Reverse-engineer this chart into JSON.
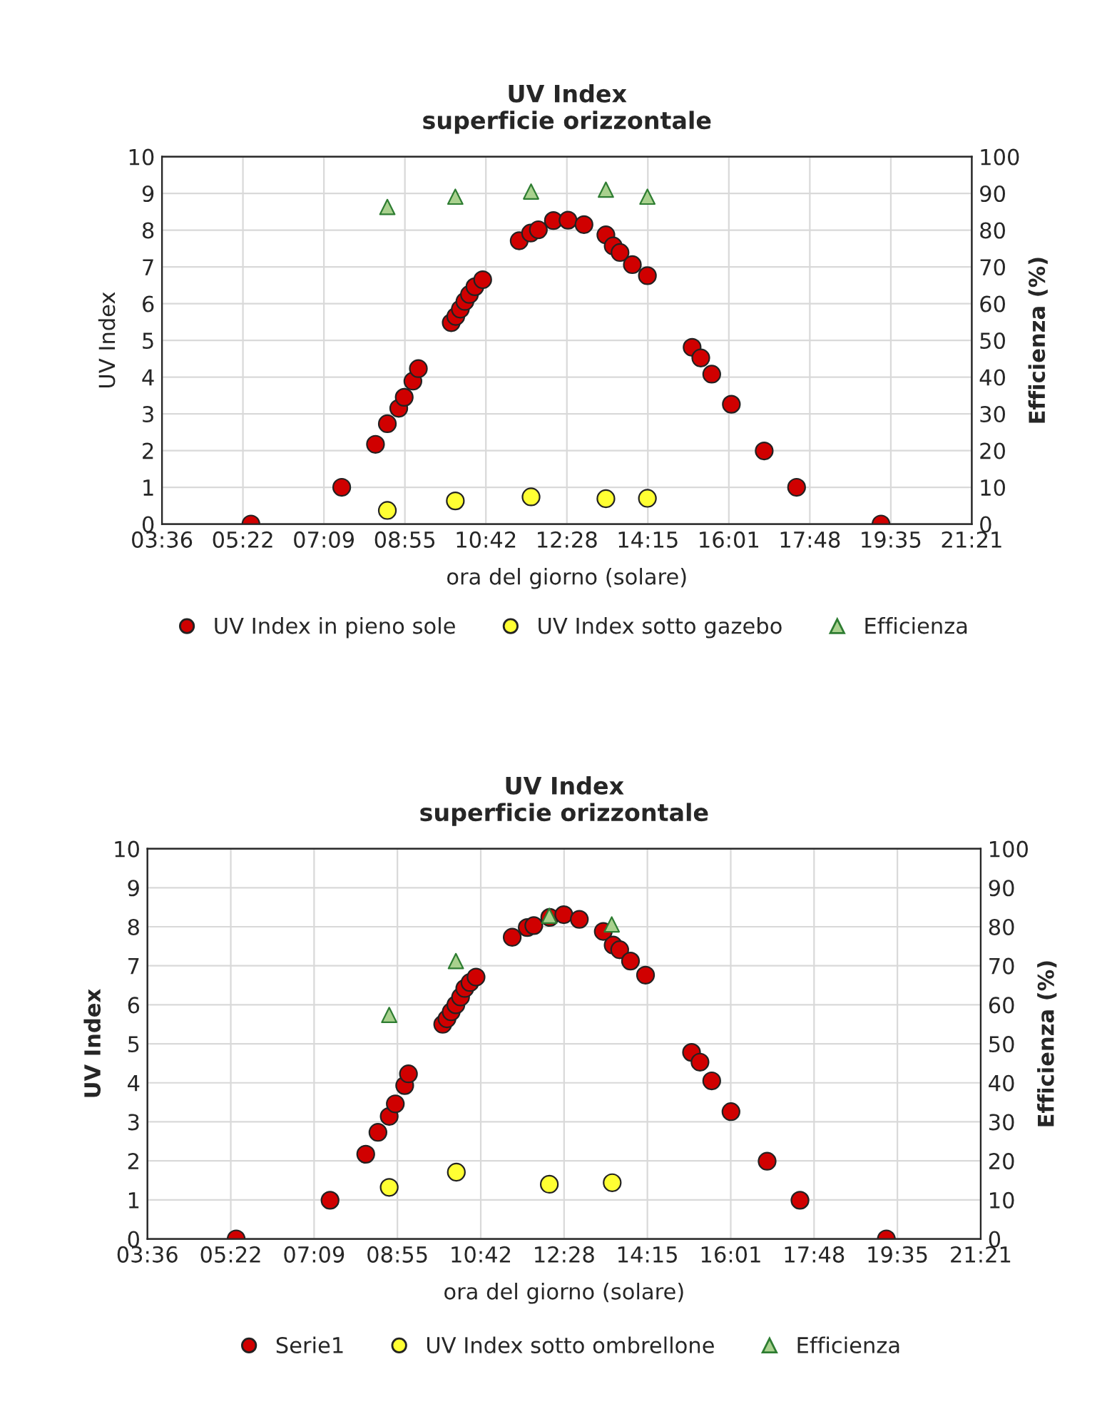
{
  "chart_data": [
    {
      "type": "scatter",
      "title": "UV Index\nsuperficie orizzontale",
      "xlabel": "ora del giorno (solare)",
      "ylabel": "UV Index",
      "y2label": "Efficienza (%)",
      "xlim": [
        3.6,
        21.35
      ],
      "xticks": [
        {
          "value": 3.6,
          "label": "03:36"
        },
        {
          "value": 5.375,
          "label": "05:22"
        },
        {
          "value": 7.15,
          "label": "07:09"
        },
        {
          "value": 8.925,
          "label": "08:55"
        },
        {
          "value": 10.7,
          "label": "10:42"
        },
        {
          "value": 12.475,
          "label": "12:28"
        },
        {
          "value": 14.25,
          "label": "14:15"
        },
        {
          "value": 16.025,
          "label": "16:01"
        },
        {
          "value": 17.8,
          "label": "17:48"
        },
        {
          "value": 19.575,
          "label": "19:35"
        },
        {
          "value": 21.35,
          "label": "21:21"
        }
      ],
      "ylim": [
        0,
        10
      ],
      "yticks": [
        0,
        1,
        2,
        3,
        4,
        5,
        6,
        7,
        8,
        9,
        10
      ],
      "y2lim": [
        0,
        100
      ],
      "y2ticks": [
        0,
        10,
        20,
        30,
        40,
        50,
        60,
        70,
        80,
        90,
        100
      ],
      "grid": true,
      "legend": "bottom",
      "series": [
        {
          "name": "UV Index in pieno sole",
          "color": "#d00000",
          "marker": "circle",
          "x": [
            5.55,
            7.54,
            8.28,
            8.54,
            8.79,
            8.91,
            9.1,
            9.22,
            9.94,
            10.04,
            10.14,
            10.24,
            10.34,
            10.46,
            10.63,
            11.43,
            11.68,
            11.85,
            12.18,
            12.5,
            12.85,
            13.33,
            13.49,
            13.64,
            13.91,
            14.24,
            15.22,
            15.41,
            15.65,
            16.08,
            16.8,
            17.51,
            19.36
          ],
          "values": [
            0,
            1.0,
            2.17,
            2.73,
            3.15,
            3.45,
            3.89,
            4.23,
            5.48,
            5.65,
            5.85,
            6.06,
            6.25,
            6.46,
            6.65,
            7.71,
            7.92,
            8.01,
            8.26,
            8.27,
            8.15,
            7.87,
            7.57,
            7.39,
            7.06,
            6.76,
            4.81,
            4.52,
            4.08,
            3.26,
            1.99,
            1.0,
            0
          ]
        },
        {
          "name": "UV Index sotto gazebo",
          "color": "#ffff33",
          "marker": "circle",
          "x": [
            8.54,
            10.03,
            11.69,
            13.33,
            14.24
          ],
          "values": [
            0.37,
            0.63,
            0.74,
            0.69,
            0.7
          ]
        },
        {
          "name": "Efficienza",
          "color": "#a9d18e",
          "marker": "triangle",
          "axis": "y2",
          "x": [
            8.54,
            10.03,
            11.69,
            13.33,
            14.24
          ],
          "values": [
            86.3,
            89.1,
            90.5,
            91.0,
            89.1
          ]
        }
      ]
    },
    {
      "type": "scatter",
      "title": "UV Index\nsuperficie orizzontale",
      "xlabel": "ora del giorno (solare)",
      "ylabel": "UV Index",
      "y2label": "Efficienza (%)",
      "xlim": [
        3.6,
        21.35
      ],
      "xticks": [
        {
          "value": 3.6,
          "label": "03:36"
        },
        {
          "value": 5.375,
          "label": "05:22"
        },
        {
          "value": 7.15,
          "label": "07:09"
        },
        {
          "value": 8.925,
          "label": "08:55"
        },
        {
          "value": 10.7,
          "label": "10:42"
        },
        {
          "value": 12.475,
          "label": "12:28"
        },
        {
          "value": 14.25,
          "label": "14:15"
        },
        {
          "value": 16.025,
          "label": "16:01"
        },
        {
          "value": 17.8,
          "label": "17:48"
        },
        {
          "value": 19.575,
          "label": "19:35"
        },
        {
          "value": 21.35,
          "label": "21:21"
        }
      ],
      "ylim": [
        0,
        10
      ],
      "yticks": [
        0,
        1,
        2,
        3,
        4,
        5,
        6,
        7,
        8,
        9,
        10
      ],
      "y2lim": [
        0,
        100
      ],
      "y2ticks": [
        0,
        10,
        20,
        30,
        40,
        50,
        60,
        70,
        80,
        90,
        100
      ],
      "grid": true,
      "legend": "bottom",
      "series": [
        {
          "name": "Serie1",
          "color": "#d00000",
          "marker": "circle",
          "x": [
            5.49,
            7.49,
            8.25,
            8.51,
            8.75,
            8.88,
            9.08,
            9.16,
            9.89,
            9.98,
            10.07,
            10.17,
            10.27,
            10.36,
            10.47,
            10.6,
            11.37,
            11.69,
            11.83,
            12.17,
            12.47,
            12.8,
            13.31,
            13.52,
            13.66,
            13.89,
            14.21,
            15.19,
            15.37,
            15.62,
            16.03,
            16.8,
            17.5,
            19.34
          ],
          "values": [
            0,
            0.99,
            2.17,
            2.73,
            3.14,
            3.46,
            3.93,
            4.23,
            5.5,
            5.64,
            5.82,
            6.0,
            6.2,
            6.42,
            6.57,
            6.71,
            7.73,
            7.98,
            8.03,
            8.24,
            8.31,
            8.19,
            7.88,
            7.53,
            7.41,
            7.12,
            6.76,
            4.78,
            4.53,
            4.05,
            3.26,
            1.99,
            0.99,
            0
          ]
        },
        {
          "name": "UV Index sotto ombrellone",
          "color": "#ffff33",
          "marker": "circle",
          "x": [
            8.75,
            10.18,
            12.16,
            13.5
          ],
          "values": [
            1.32,
            1.71,
            1.4,
            1.44
          ]
        },
        {
          "name": "Efficienza",
          "color": "#a9d18e",
          "marker": "triangle",
          "axis": "y2",
          "x": [
            8.75,
            10.17,
            12.16,
            13.49
          ],
          "values": [
            57.4,
            71.2,
            82.8,
            80.6
          ]
        }
      ]
    }
  ]
}
